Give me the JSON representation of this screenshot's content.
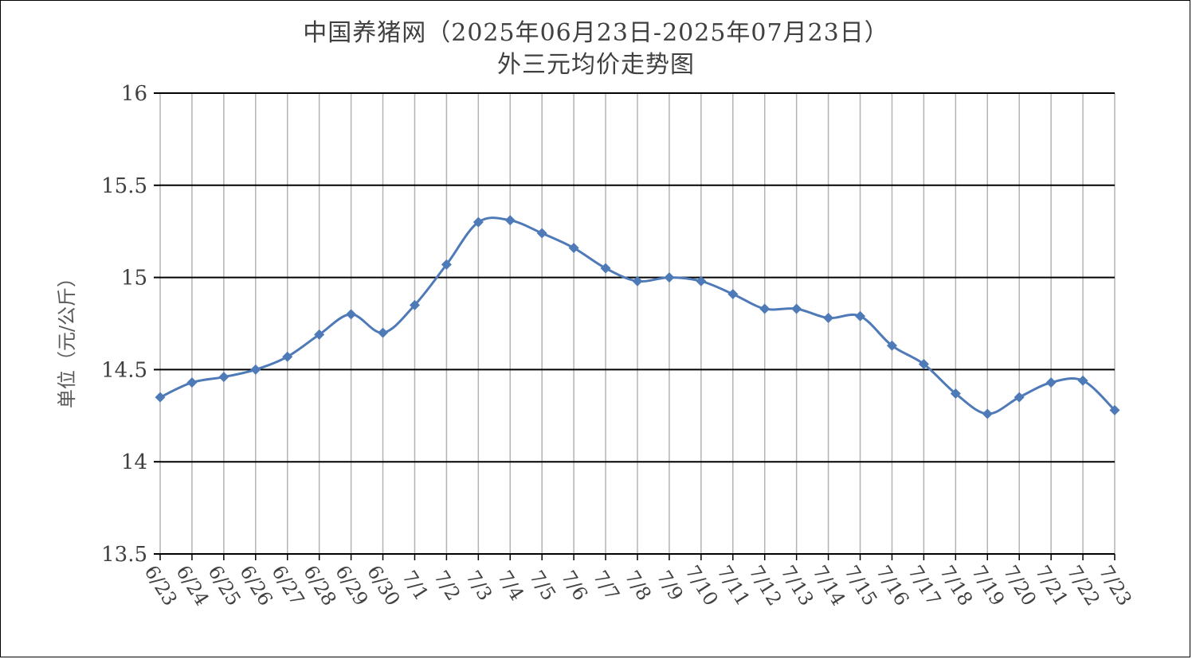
{
  "chart_data": {
    "type": "line",
    "title": "中国养猪网（2025年06月23日-2025年07月23日）",
    "subtitle": "外三元均价走势图",
    "xlabel": "",
    "ylabel": "单位（元/公斤）",
    "ylim": [
      13.5,
      16
    ],
    "yticks": [
      "16",
      "15.5",
      "15",
      "14.5",
      "14",
      "13.5"
    ],
    "grid": true,
    "legend": "none",
    "line_color": "#4f7ab8",
    "categories": [
      "6/23",
      "6/24",
      "6/25",
      "6/26",
      "6/27",
      "6/28",
      "6/29",
      "6/30",
      "7/1",
      "7/2",
      "7/3",
      "7/4",
      "7/5",
      "7/6",
      "7/7",
      "7/8",
      "7/9",
      "7/10",
      "7/11",
      "7/12",
      "7/13",
      "7/14",
      "7/15",
      "7/16",
      "7/17",
      "7/18",
      "7/19",
      "7/20",
      "7/21",
      "7/22",
      "7/23"
    ],
    "values": [
      14.35,
      14.43,
      14.46,
      14.5,
      14.57,
      14.69,
      14.8,
      14.7,
      14.85,
      15.07,
      15.3,
      15.31,
      15.24,
      15.16,
      15.05,
      14.98,
      15.0,
      14.98,
      14.91,
      14.83,
      14.83,
      14.78,
      14.79,
      14.63,
      14.53,
      14.37,
      14.26,
      14.35,
      14.43,
      14.44,
      14.28
    ]
  }
}
